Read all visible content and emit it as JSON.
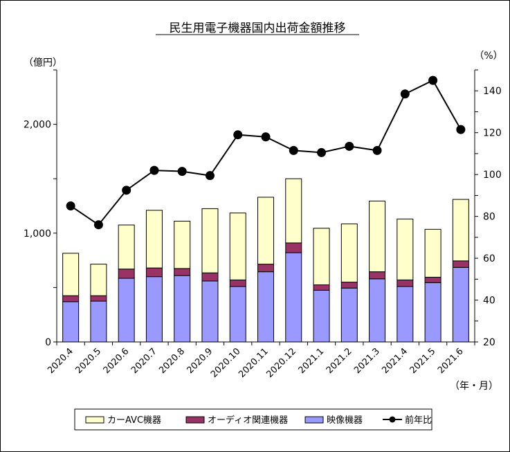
{
  "chart_data": {
    "type": "bar",
    "stacked": true,
    "title": "民生用電子機器国内出荷金額推移",
    "left_unit": "（億円）",
    "right_unit": "（%）",
    "x_unit": "（年・月）",
    "categories": [
      "2020.4",
      "2020.5",
      "2020.6",
      "2020.7",
      "2020.8",
      "2020.9",
      "2020.10",
      "2020.11",
      "2020.12",
      "2021.1",
      "2021.2",
      "2021.3",
      "2021.4",
      "2021.5",
      "2021.6"
    ],
    "y_left": {
      "min": 0,
      "max": 2500,
      "ticks": [
        0,
        1000,
        2000
      ],
      "tick_labels": [
        "0",
        "1,000",
        "2,000"
      ]
    },
    "y_right": {
      "min": 20,
      "max": 150,
      "ticks": [
        20,
        40,
        60,
        80,
        100,
        120,
        140
      ],
      "tick_labels": [
        "20",
        "40",
        "60",
        "80",
        "100",
        "120",
        "140"
      ]
    },
    "series": [
      {
        "name": "映像機器",
        "kind": "bar",
        "axis": "left",
        "color": "#9999ff",
        "values": [
          370,
          375,
          585,
          600,
          610,
          560,
          510,
          645,
          820,
          475,
          495,
          580,
          510,
          545,
          685
        ]
      },
      {
        "name": "オーディオ関連機器",
        "kind": "bar",
        "axis": "left",
        "color": "#993366",
        "values": [
          55,
          50,
          85,
          80,
          65,
          75,
          60,
          70,
          90,
          50,
          55,
          65,
          60,
          50,
          60
        ]
      },
      {
        "name": "カーAVC機器",
        "kind": "bar",
        "axis": "left",
        "color": "#ffffcc",
        "values": [
          390,
          290,
          405,
          530,
          435,
          590,
          615,
          615,
          590,
          520,
          535,
          650,
          560,
          440,
          565
        ]
      },
      {
        "name": "前年比",
        "kind": "line",
        "axis": "right",
        "color": "#000000",
        "values": [
          85,
          76,
          92.5,
          102,
          101.5,
          99.5,
          119,
          118,
          111.5,
          110.5,
          113.5,
          111.5,
          138.5,
          145,
          121.5
        ]
      }
    ],
    "legend_order": [
      "カーAVC機器",
      "オーディオ関連機器",
      "映像機器",
      "前年比"
    ],
    "legend_position": "bottom",
    "grid": false
  }
}
